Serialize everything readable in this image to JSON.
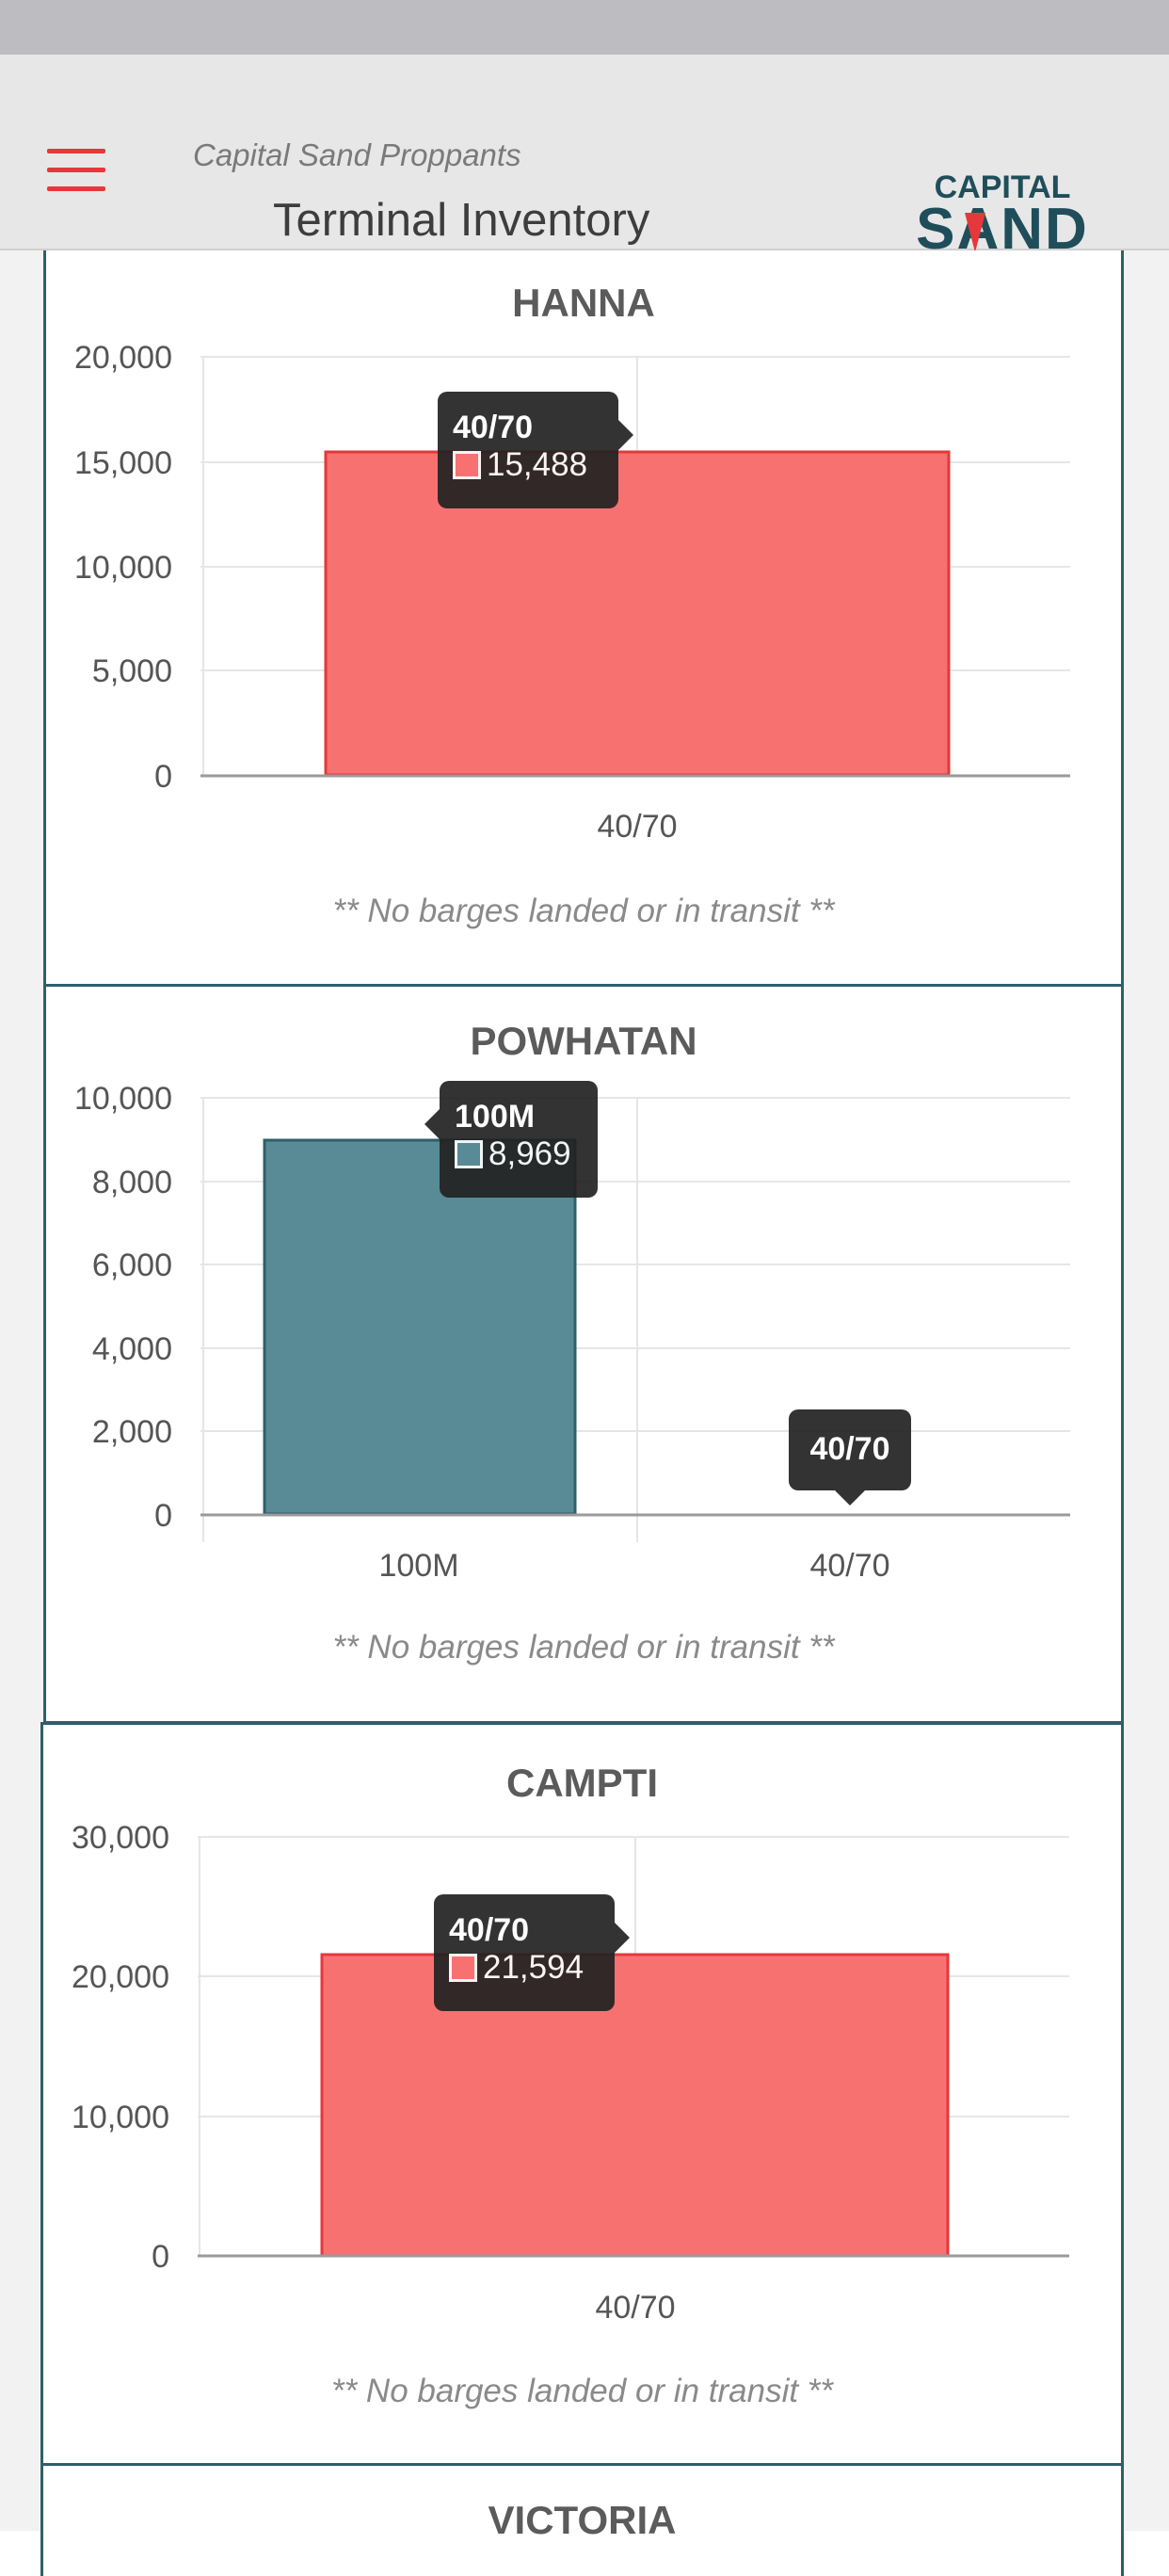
{
  "header": {
    "subtitle": "Capital Sand Proppants",
    "title": "Terminal Inventory",
    "logo_text_top": "CAPITAL",
    "logo_text_bottom": "SAND"
  },
  "colors": {
    "accent_red": "#e5383b",
    "bar_red": "#f87171",
    "bar_teal": "#588b96",
    "border_teal": "#2e5f6b"
  },
  "cards": [
    {
      "name": "HANNA",
      "note": "** No barges landed or in transit **",
      "tooltip": {
        "label": "40/70",
        "value": "15,488"
      },
      "yticks": [
        "20,000",
        "15,000",
        "10,000",
        "5,000",
        "0"
      ]
    },
    {
      "name": "POWHATAN",
      "note": "** No barges landed or in transit **",
      "tooltip": {
        "label": "100M",
        "value": "8,969"
      },
      "tooltip2": {
        "label": "40/70"
      },
      "yticks": [
        "10,000",
        "8,000",
        "6,000",
        "4,000",
        "2,000",
        "0"
      ]
    },
    {
      "name": "CAMPTI",
      "note": "** No barges landed or in transit **",
      "tooltip": {
        "label": "40/70",
        "value": "21,594"
      },
      "yticks": [
        "30,000",
        "20,000",
        "10,000",
        "0"
      ]
    },
    {
      "name": "VICTORIA"
    }
  ],
  "chart_data": [
    {
      "type": "bar",
      "title": "HANNA",
      "categories": [
        "40/70"
      ],
      "values": [
        15488
      ],
      "ylim": [
        0,
        20000
      ],
      "yticks": [
        0,
        5000,
        10000,
        15000,
        20000
      ],
      "colors": [
        "#f87171"
      ],
      "grid": true
    },
    {
      "type": "bar",
      "title": "POWHATAN",
      "categories": [
        "100M",
        "40/70"
      ],
      "values": [
        8969,
        0
      ],
      "ylim": [
        0,
        10000
      ],
      "yticks": [
        0,
        2000,
        4000,
        6000,
        8000,
        10000
      ],
      "colors": [
        "#588b96",
        "#f87171"
      ],
      "grid": true
    },
    {
      "type": "bar",
      "title": "CAMPTI",
      "categories": [
        "40/70"
      ],
      "values": [
        21594
      ],
      "ylim": [
        0,
        30000
      ],
      "yticks": [
        0,
        10000,
        20000,
        30000
      ],
      "colors": [
        "#f87171"
      ],
      "grid": true
    }
  ]
}
